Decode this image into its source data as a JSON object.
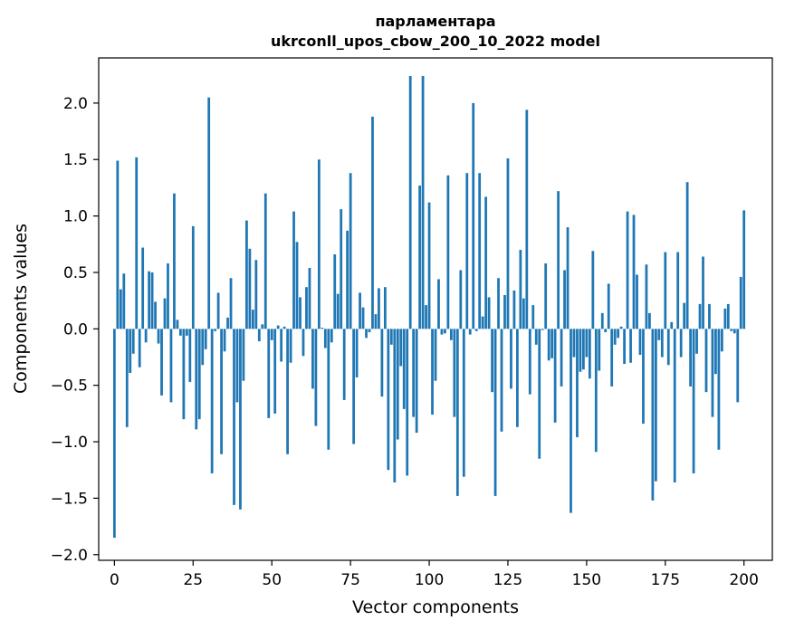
{
  "chart_data": {
    "type": "bar",
    "title": "парламентара",
    "subtitle": "ukrconll_upos_cbow_200_10_2022 model",
    "xlabel": "Vector components",
    "ylabel": "Components values",
    "xlim": [
      -5,
      209
    ],
    "ylim": [
      -2.05,
      2.4
    ],
    "xticks": [
      0,
      25,
      50,
      75,
      100,
      125,
      150,
      175,
      200
    ],
    "yticks": [
      -2.0,
      -1.5,
      -1.0,
      -0.5,
      0.0,
      0.5,
      1.0,
      1.5,
      2.0
    ],
    "ytick_labels": [
      "−2.0",
      "−1.5",
      "−1.0",
      "−0.5",
      "0.0",
      "0.5",
      "1.0",
      "1.5",
      "2.0"
    ],
    "bar_color": "#1f77b4",
    "grid": false,
    "values": [
      -1.85,
      1.49,
      0.35,
      0.49,
      -0.87,
      -0.39,
      -0.22,
      1.52,
      -0.34,
      0.72,
      -0.12,
      0.51,
      0.5,
      0.24,
      -0.13,
      -0.59,
      0.27,
      0.58,
      -0.65,
      1.2,
      0.08,
      -0.06,
      -0.8,
      -0.06,
      -0.47,
      0.91,
      -0.89,
      -0.8,
      -0.32,
      -0.18,
      2.05,
      -1.28,
      -0.02,
      0.32,
      -1.11,
      -0.2,
      0.1,
      0.45,
      -1.56,
      -0.65,
      -1.6,
      -0.46,
      0.96,
      0.71,
      0.17,
      0.61,
      -0.11,
      0.04,
      1.2,
      -0.79,
      -0.1,
      -0.75,
      0.03,
      -0.29,
      0.02,
      -1.11,
      -0.3,
      1.04,
      0.77,
      0.28,
      -0.24,
      0.37,
      0.54,
      -0.53,
      -0.86,
      1.5,
      0.01,
      -0.17,
      -1.07,
      -0.12,
      0.66,
      0.31,
      1.06,
      -0.63,
      0.87,
      1.38,
      -1.02,
      -0.43,
      0.32,
      0.19,
      -0.08,
      -0.03,
      1.88,
      0.13,
      0.36,
      -0.6,
      0.37,
      -1.25,
      -0.14,
      -1.36,
      -0.98,
      -0.33,
      -0.71,
      -1.3,
      2.24,
      -0.78,
      -0.92,
      1.27,
      2.24,
      0.21,
      1.12,
      -0.76,
      -0.46,
      0.44,
      -0.05,
      -0.04,
      1.36,
      -0.1,
      -0.78,
      -1.48,
      0.52,
      -1.31,
      1.38,
      -0.05,
      2.0,
      -0.02,
      1.38,
      0.11,
      1.17,
      0.28,
      -0.56,
      -1.48,
      0.45,
      -0.91,
      0.3,
      1.51,
      -0.53,
      0.34,
      -0.87,
      0.7,
      0.27,
      1.94,
      -0.58,
      0.21,
      -0.14,
      -1.15,
      -0.01,
      0.58,
      -0.28,
      -0.26,
      -0.83,
      1.22,
      -0.51,
      0.52,
      0.9,
      -1.63,
      -0.25,
      -0.96,
      -0.38,
      -0.36,
      -0.25,
      -0.44,
      0.69,
      -1.09,
      -0.37,
      0.14,
      -0.03,
      0.4,
      -0.51,
      -0.14,
      -0.08,
      0.02,
      -0.31,
      1.04,
      -0.3,
      1.01,
      0.48,
      -0.23,
      -0.84,
      0.57,
      0.14,
      -1.52,
      -1.35,
      -0.1,
      -0.25,
      0.68,
      -0.32,
      0.06,
      -1.36,
      0.68,
      -0.25,
      0.23,
      1.3,
      -0.51,
      -1.28,
      -0.22,
      0.22,
      0.64,
      -0.56,
      0.22,
      -0.78,
      -0.4,
      -1.07,
      -0.2,
      0.18,
      0.22,
      -0.02,
      -0.04,
      -0.65,
      0.46,
      1.05
    ]
  }
}
